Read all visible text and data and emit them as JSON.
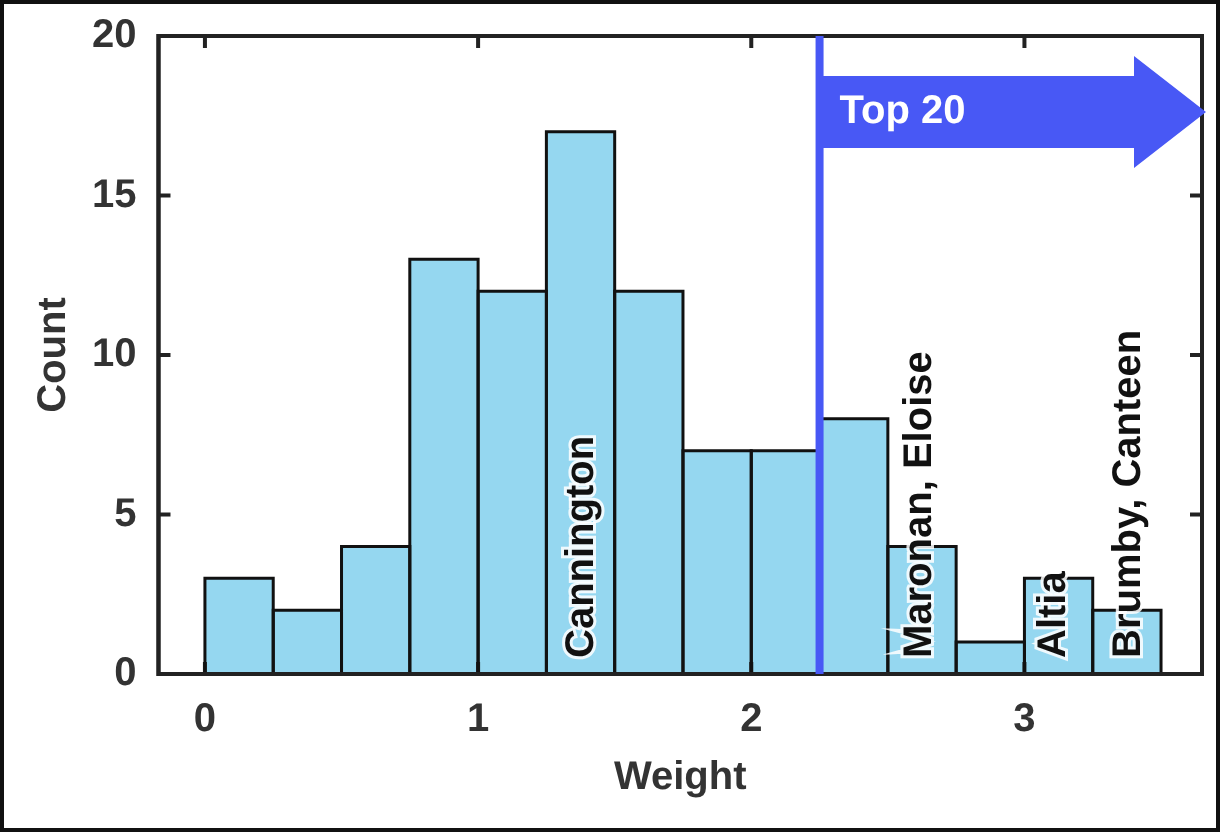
{
  "chart_data": {
    "type": "histogram",
    "xlabel": "Weight",
    "ylabel": "Count",
    "bins": [
      0,
      0.25,
      0.5,
      0.75,
      1,
      1.25,
      1.5,
      1.75,
      2,
      2.25,
      2.5,
      2.75,
      3,
      3.25,
      3.5
    ],
    "values": [
      3,
      2,
      4,
      13,
      12,
      17,
      12,
      7,
      7,
      8,
      4,
      1,
      3,
      2
    ],
    "color": "#95d7f0",
    "xlim": [
      -0.17,
      3.65
    ],
    "xticks": [
      0,
      1,
      2,
      3
    ],
    "ylim": [
      0,
      20
    ],
    "yticks": [
      0,
      5,
      10,
      15,
      20
    ],
    "ref_lines": [
      {
        "axis": "x",
        "value": 2.25,
        "label": "Top 20",
        "color": "#4858f5"
      }
    ],
    "annotations": [
      "Cannington",
      "Maronan, Eloise",
      "Altia",
      "Brumby, Canteen"
    ]
  }
}
